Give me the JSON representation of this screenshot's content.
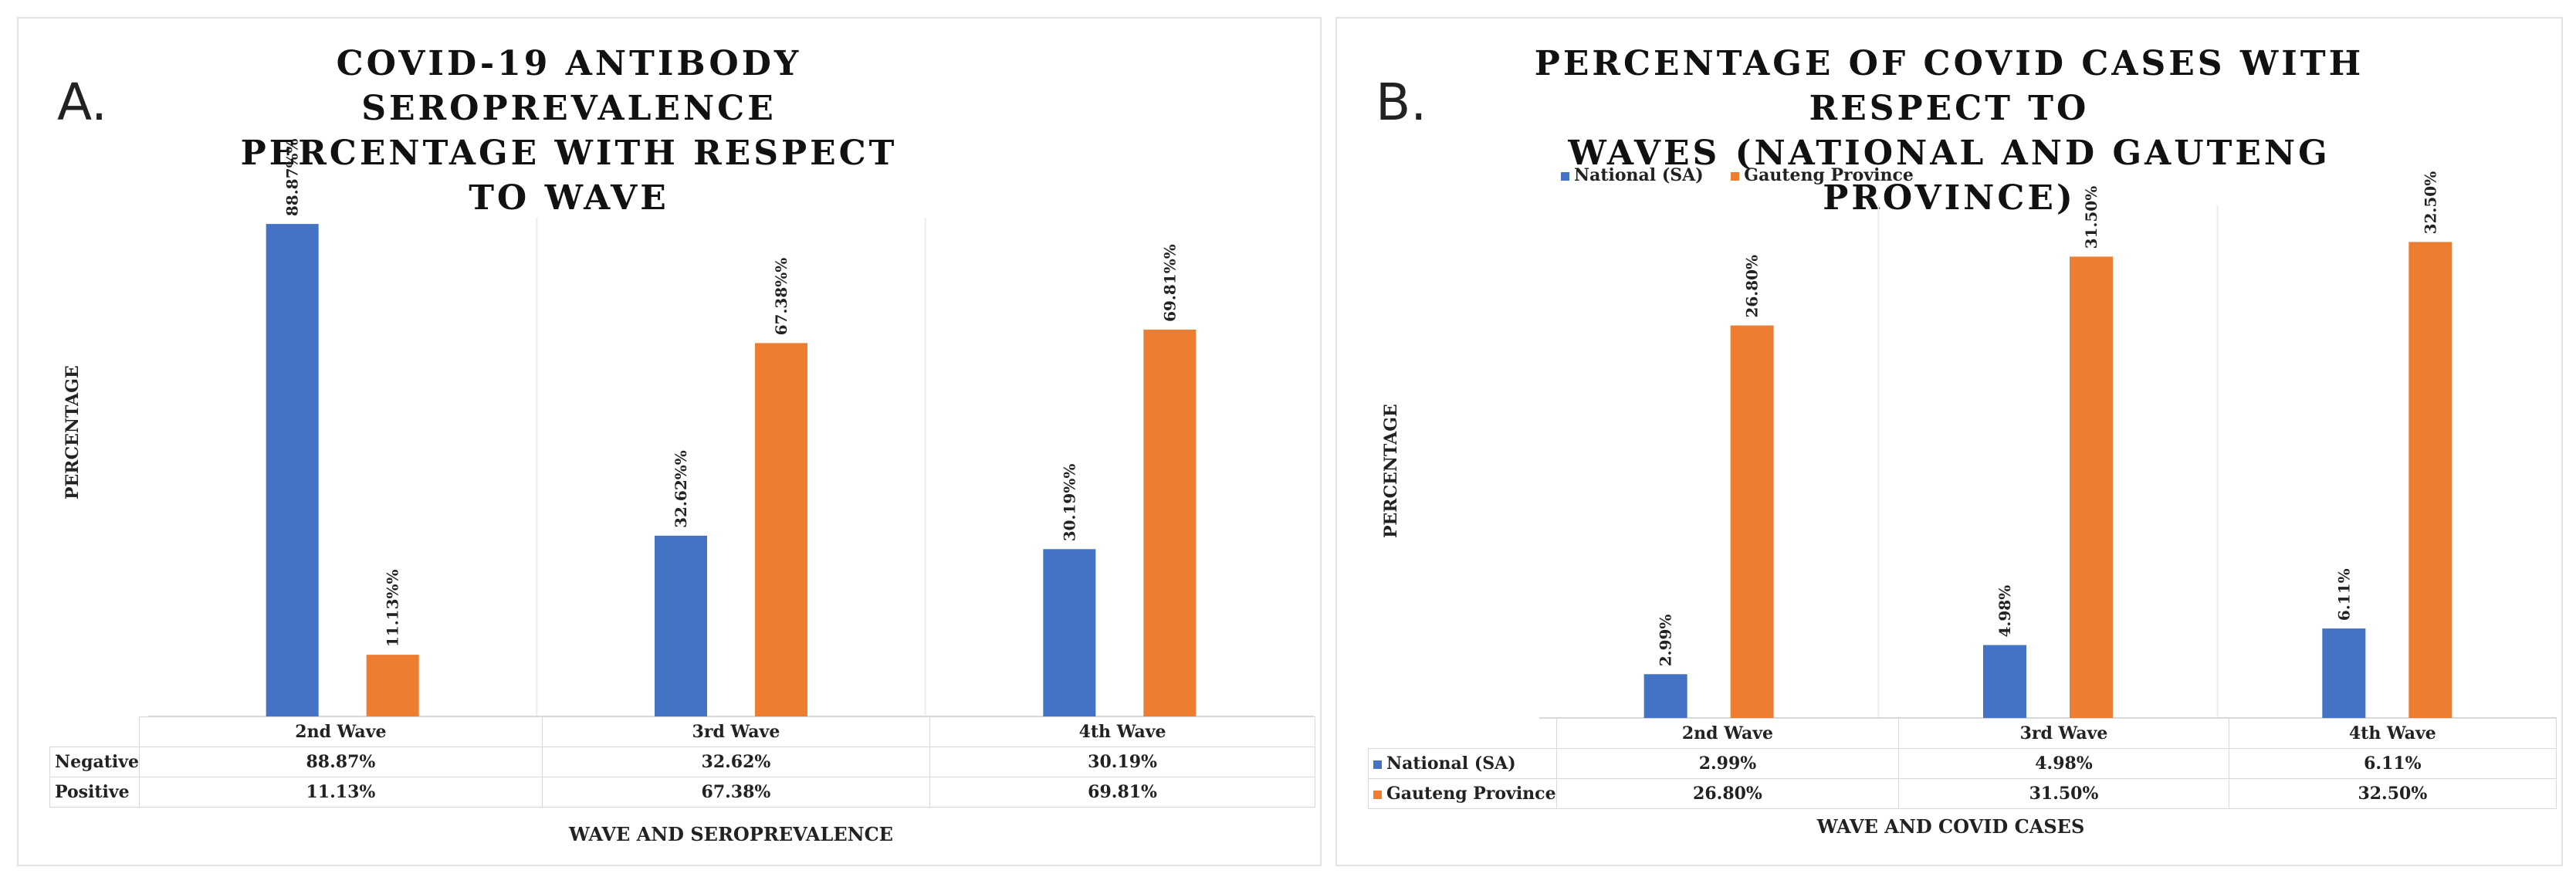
{
  "panels": {
    "a": {
      "letter": "A.",
      "title_line1": "COVID-19 ANTIBODY SEROPREVALENCE",
      "title_line2": "PERCENTAGE WITH RESPECT TO WAVE",
      "ylabel": "PERCENTAGE",
      "xlabel": "WAVE AND SEROPREVALENCE",
      "row_labels": [
        "Negative",
        "Positive"
      ]
    },
    "b": {
      "letter": "B.",
      "title_line1": "PERCENTAGE OF COVID CASES WITH RESPECT TO",
      "title_line2": "WAVES (NATIONAL AND GAUTENG PROVINCE)",
      "ylabel": "PERCENTAGE",
      "xlabel": "WAVE AND COVID CASES",
      "legend": [
        "National (SA)",
        "Gauteng Province"
      ]
    }
  },
  "colors": {
    "blue": "#4472C4",
    "orange": "#ED7D31"
  },
  "chart_data": [
    {
      "type": "bar",
      "title": "COVID-19 ANTIBODY SEROPREVALENCE PERCENTAGE WITH RESPECT TO WAVE",
      "xlabel": "WAVE AND SEROPREVALENCE",
      "ylabel": "PERCENTAGE",
      "categories": [
        "2nd Wave",
        "3rd Wave",
        "4th Wave"
      ],
      "series": [
        {
          "name": "Negative",
          "values": [
            88.87,
            32.62,
            30.19
          ],
          "bar_labels": [
            "88.87%%",
            "32.62%%",
            "30.19%%"
          ],
          "table_values": [
            "88.87%",
            "32.62%",
            "30.19%"
          ]
        },
        {
          "name": "Positive",
          "values": [
            11.13,
            67.38,
            69.81
          ],
          "bar_labels": [
            "11.13%%",
            "67.38%%",
            "69.81%%"
          ],
          "table_values": [
            "11.13%",
            "67.38%",
            "69.81%"
          ]
        }
      ],
      "ylim": [
        0,
        90
      ],
      "grid": false,
      "data_table": true
    },
    {
      "type": "bar",
      "title": "PERCENTAGE OF COVID CASES WITH RESPECT TO WAVES (NATIONAL AND GAUTENG PROVINCE)",
      "xlabel": "WAVE AND COVID CASES",
      "ylabel": "PERCENTAGE",
      "categories": [
        "2nd Wave",
        "3rd Wave",
        "4th Wave"
      ],
      "series": [
        {
          "name": "National (SA)",
          "values": [
            2.99,
            4.98,
            6.11
          ],
          "bar_labels": [
            "2.99%",
            "4.98%",
            "6.11%"
          ],
          "table_values": [
            "2.99%",
            "4.98%",
            "6.11%"
          ]
        },
        {
          "name": "Gauteng Province",
          "values": [
            26.8,
            31.5,
            32.5
          ],
          "bar_labels": [
            "26.80%",
            "31.50%",
            "32.50%"
          ],
          "table_values": [
            "26.80%",
            "31.50%",
            "32.50%"
          ]
        }
      ],
      "ylim": [
        0,
        35
      ],
      "legend": "top-left",
      "grid": false,
      "data_table": true
    }
  ]
}
